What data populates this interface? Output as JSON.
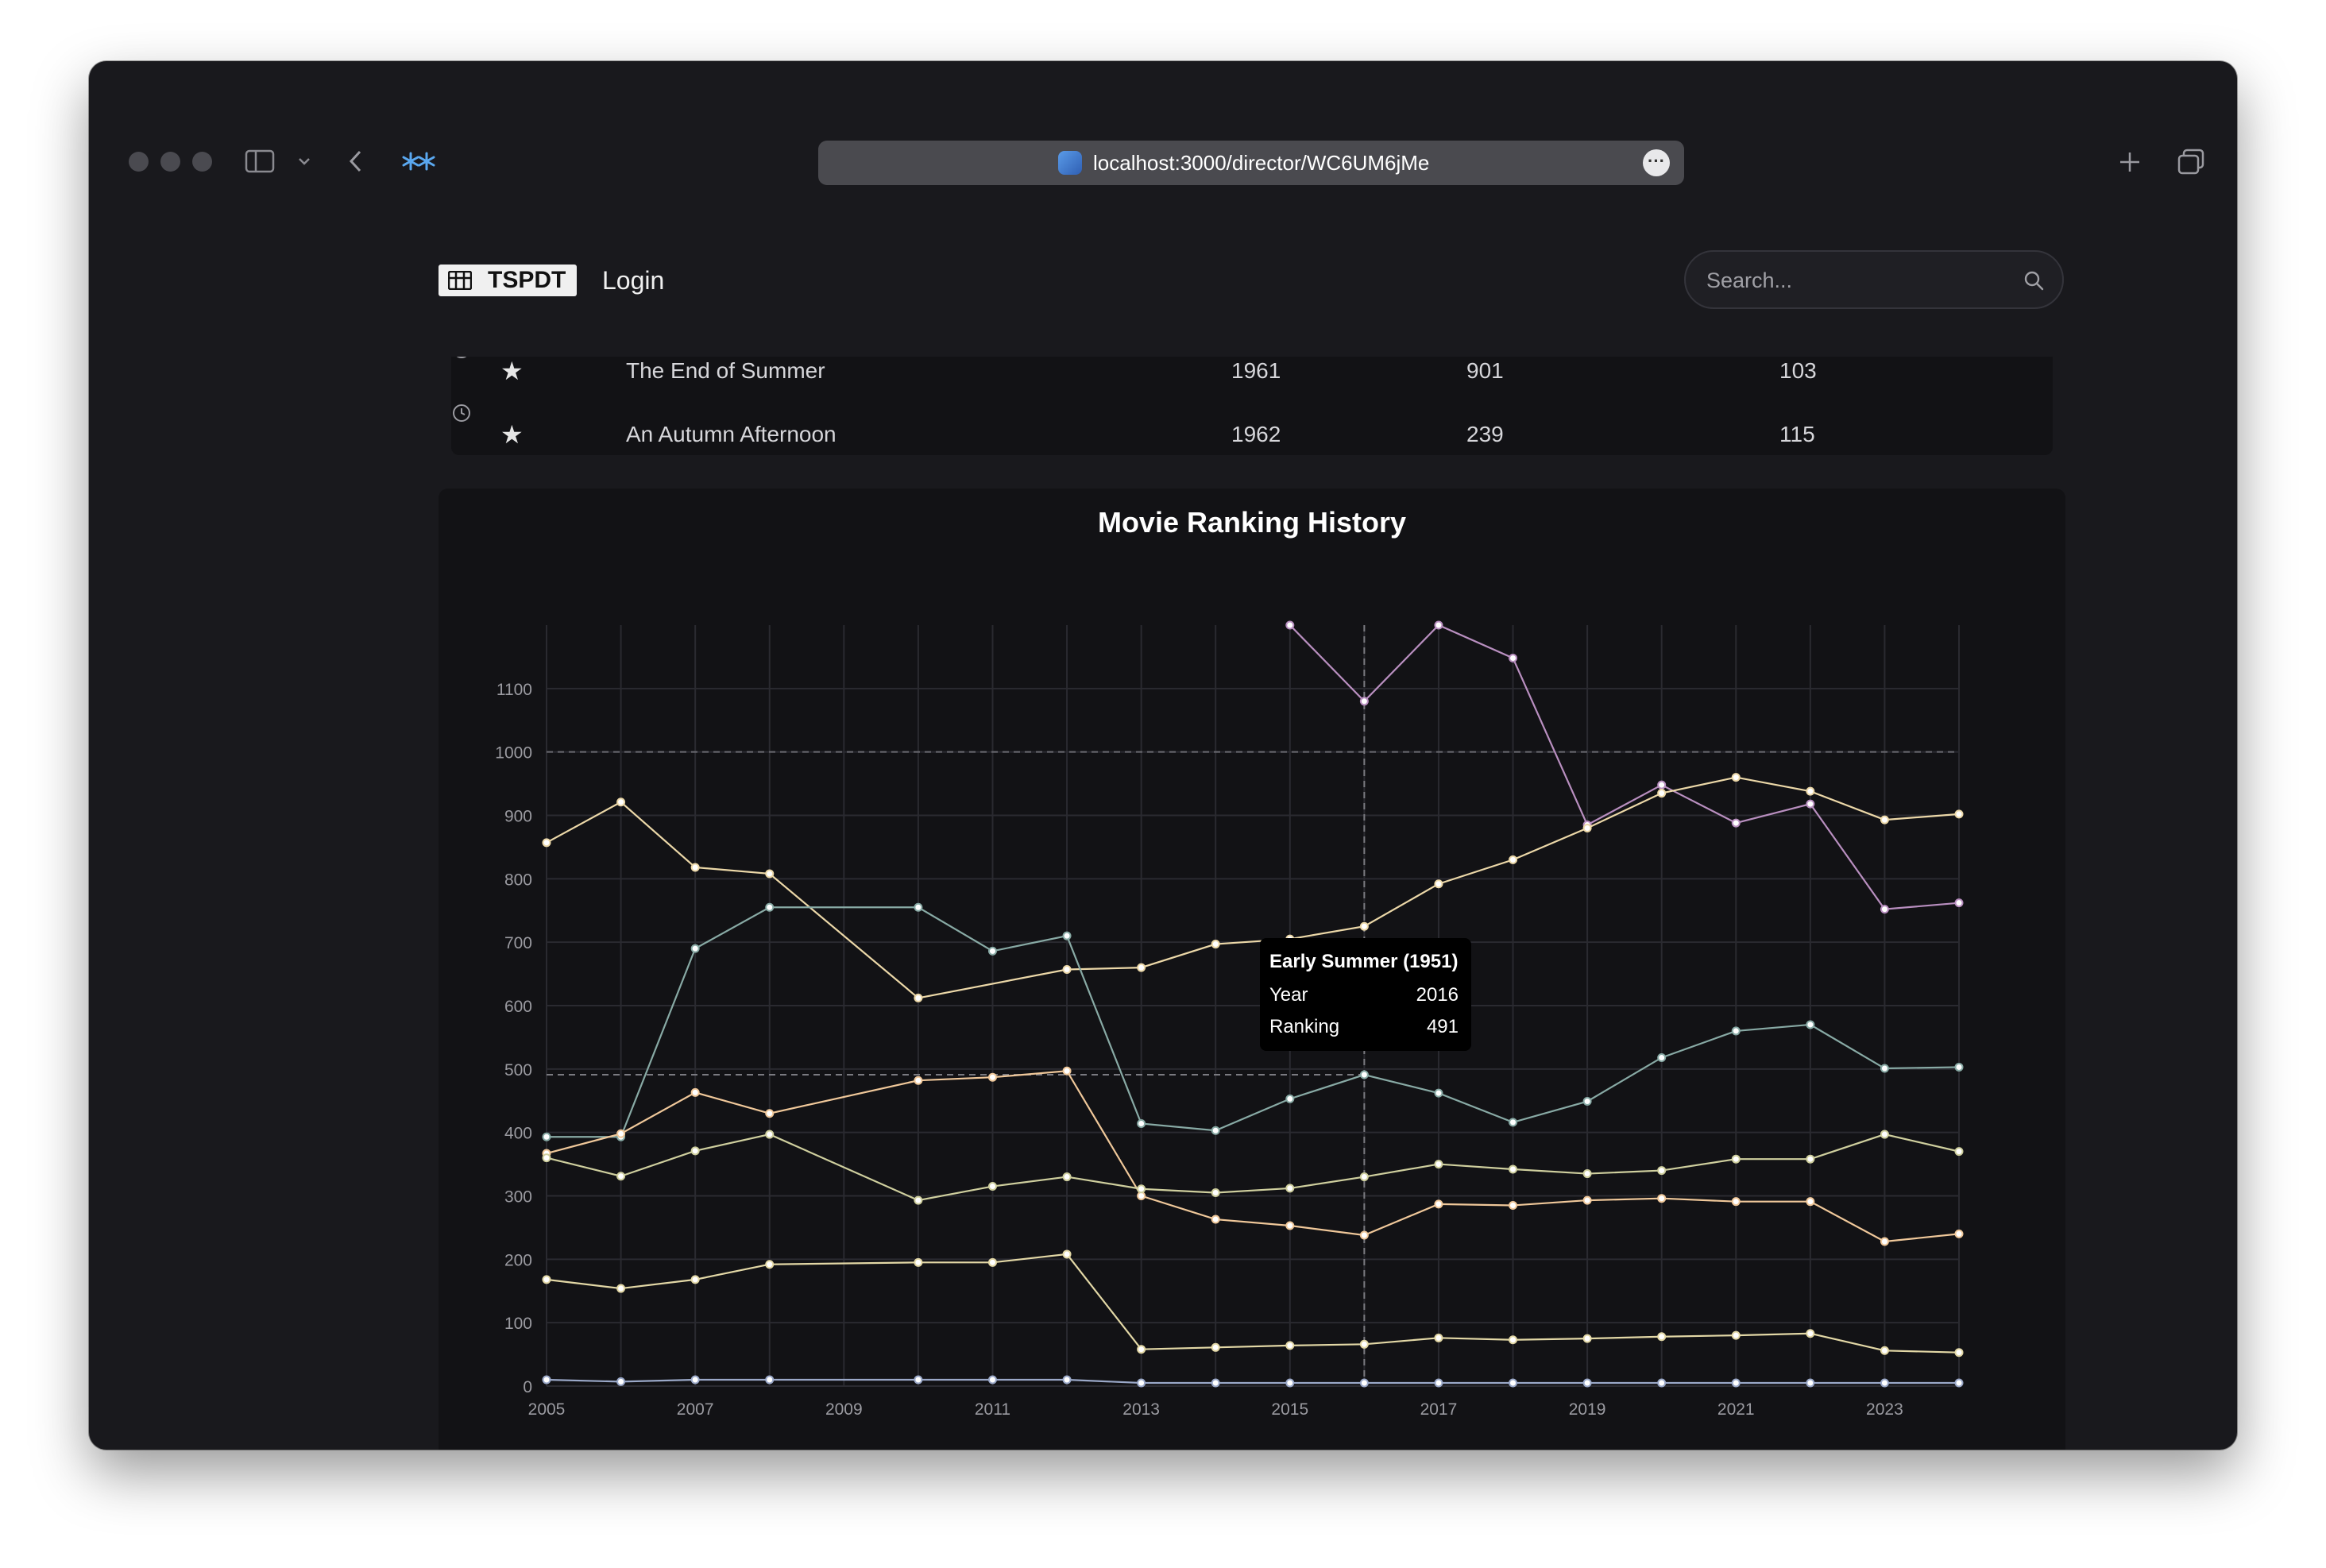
{
  "browser": {
    "url": "localhost:3000/director/WC6UM6jMe",
    "icons": [
      "sidebar-toggle-icon",
      "chevron-down-icon",
      "back-icon",
      "extension-icon",
      "more-icon",
      "new-tab-icon",
      "tabs-overview-icon"
    ]
  },
  "nav": {
    "logo": "TSPDT",
    "login": "Login",
    "search_placeholder": "Search..."
  },
  "table": {
    "rows": [
      {
        "title": "The End of Summer",
        "year": "1961",
        "rank": "901",
        "runtime": "103"
      },
      {
        "title": "An Autumn Afternoon",
        "year": "1962",
        "rank": "239",
        "runtime": "115"
      }
    ]
  },
  "chart_data": {
    "type": "line",
    "title": "Movie Ranking History",
    "xlabel": "",
    "ylabel": "",
    "x": [
      2005,
      2006,
      2007,
      2008,
      2009,
      2010,
      2011,
      2012,
      2013,
      2014,
      2015,
      2016,
      2017,
      2018,
      2019,
      2020,
      2021,
      2022,
      2023,
      2024
    ],
    "xlim": [
      2005,
      2024
    ],
    "ylim": [
      0,
      1200
    ],
    "x_ticks": [
      2005,
      2007,
      2009,
      2011,
      2013,
      2015,
      2017,
      2019,
      2021,
      2023
    ],
    "y_ticks": [
      0,
      100,
      200,
      300,
      400,
      500,
      600,
      700,
      800,
      900,
      1000,
      1100
    ],
    "reference_line": 1000,
    "grid": true,
    "series": [
      {
        "color": "#b98fc0",
        "values": [
          null,
          null,
          null,
          null,
          null,
          null,
          null,
          null,
          null,
          null,
          1200,
          1080,
          1200,
          1148,
          885,
          948,
          888,
          918,
          752,
          762
        ]
      },
      {
        "color": "#ecd8a8",
        "values": [
          857,
          921,
          818,
          808,
          null,
          612,
          null,
          657,
          660,
          697,
          705,
          725,
          792,
          830,
          880,
          935,
          960,
          938,
          893,
          902
        ]
      },
      {
        "color": "#88aaa5",
        "values": [
          393,
          393,
          690,
          755,
          null,
          755,
          686,
          710,
          414,
          403,
          453,
          491,
          462,
          416,
          449,
          518,
          560,
          570,
          501,
          503
        ]
      },
      {
        "color": "#f0c89a",
        "values": [
          367,
          398,
          463,
          430,
          null,
          482,
          487,
          497,
          300,
          263,
          253,
          238,
          287,
          285,
          293,
          296,
          291,
          291,
          228,
          240
        ]
      },
      {
        "color": "#cfcf9e",
        "values": [
          360,
          331,
          371,
          397,
          null,
          293,
          315,
          330,
          311,
          305,
          312,
          330,
          350,
          342,
          335,
          340,
          358,
          358,
          397,
          370
        ]
      },
      {
        "color": "#e3d8a6",
        "values": [
          168,
          154,
          168,
          192,
          null,
          195,
          195,
          208,
          58,
          61,
          64,
          66,
          76,
          73,
          75,
          78,
          80,
          83,
          56,
          53
        ]
      },
      {
        "color": "#9aa8c8",
        "values": [
          10,
          7,
          10,
          10,
          null,
          10,
          10,
          10,
          5,
          5,
          5,
          5,
          5,
          5,
          5,
          5,
          5,
          5,
          5,
          5
        ]
      }
    ],
    "hover": {
      "x": 2016,
      "y": 491,
      "title": "Early Summer (1951)",
      "year_label": "Year",
      "year": "2016",
      "ranking_label": "Ranking",
      "ranking": "491"
    }
  }
}
